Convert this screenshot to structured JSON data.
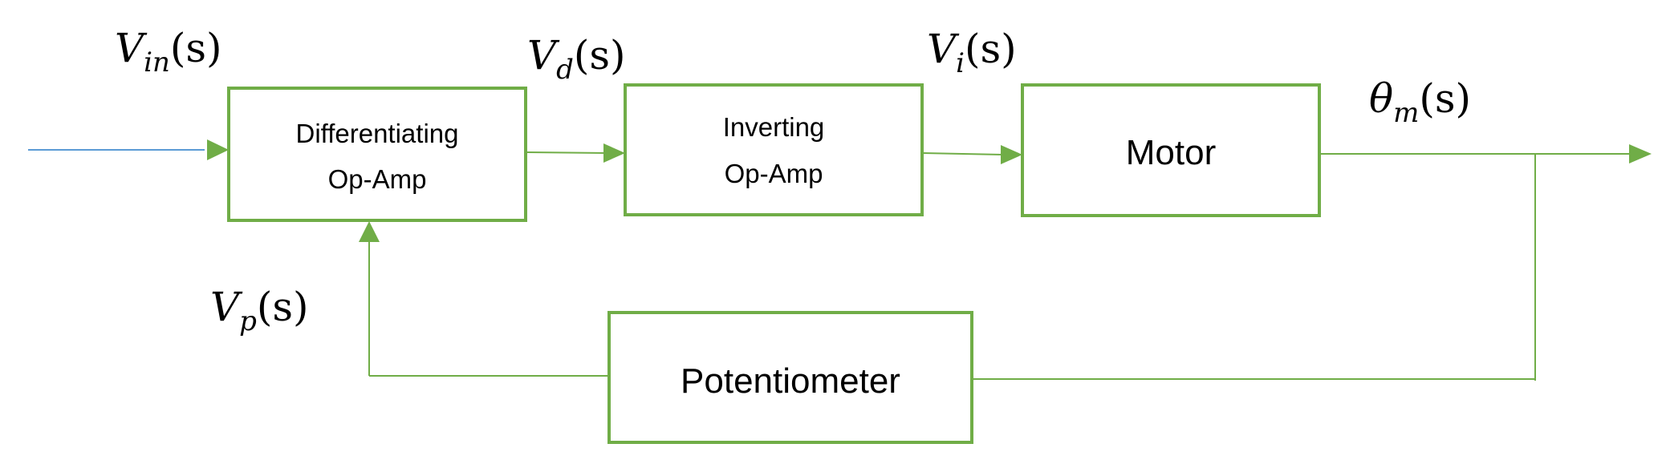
{
  "colors": {
    "block_border": "#70ad47",
    "wire": "#70ad47",
    "input_line": "#5b9bd5",
    "text": "#000000",
    "background": "#ffffff"
  },
  "blocks": {
    "differentiating": {
      "line1": "Differentiating",
      "line2": "Op-Amp"
    },
    "inverting": {
      "line1": "Inverting",
      "line2": "Op-Amp"
    },
    "motor": {
      "label": "Motor"
    },
    "potentiometer": {
      "label": "Potentiometer"
    }
  },
  "signals": {
    "vin": {
      "symbol": "V",
      "subscript": "in",
      "arg": "(s)"
    },
    "vd": {
      "symbol": "V",
      "subscript": "d",
      "arg": "(s)"
    },
    "vi": {
      "symbol": "V",
      "subscript": "i",
      "arg": "(s)"
    },
    "theta_m": {
      "symbol": "θ",
      "subscript": "m",
      "arg": "(s)"
    },
    "vp": {
      "symbol": "V",
      "subscript": "p",
      "arg": "(s)"
    }
  }
}
